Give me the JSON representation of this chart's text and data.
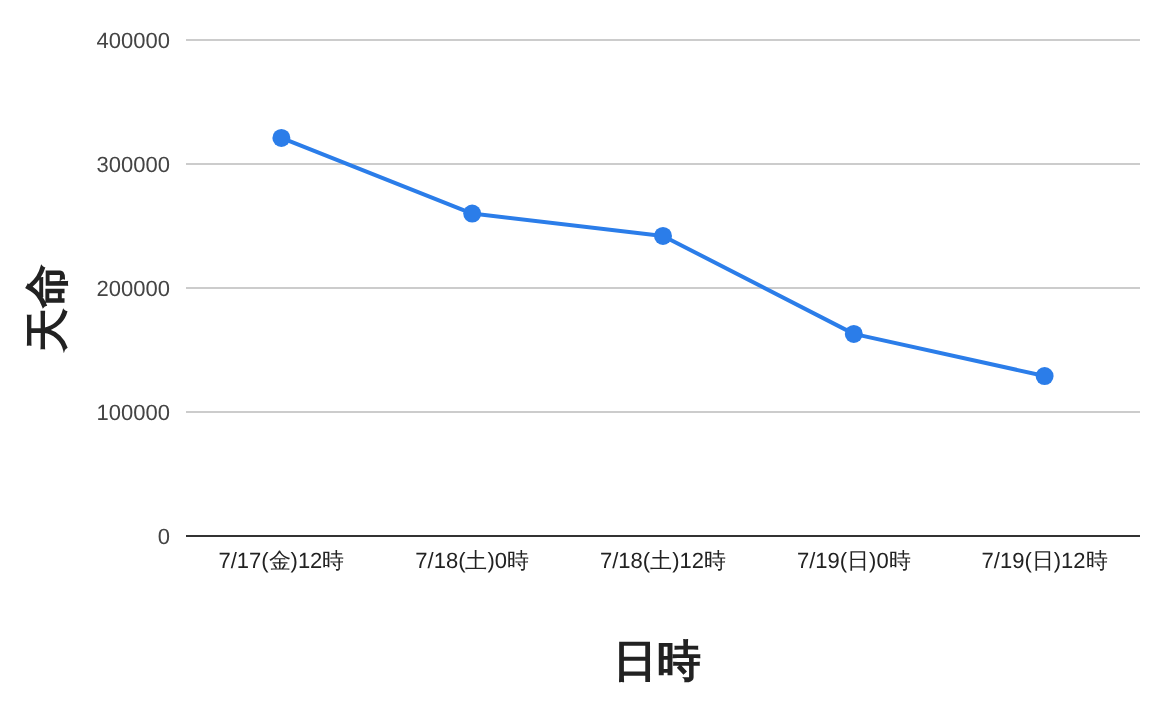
{
  "chart_data": {
    "type": "line",
    "xlabel": "日時",
    "ylabel": "天命",
    "categories": [
      "7/17(金)12時",
      "7/18(土)0時",
      "7/18(土)12時",
      "7/19(日)0時",
      "7/19(日)12時"
    ],
    "series": [
      {
        "color": "#2b7de9",
        "values": [
          321000,
          260000,
          242000,
          163000,
          129000
        ]
      }
    ],
    "ylim": [
      0,
      400000
    ],
    "yticks": [
      0,
      100000,
      200000,
      300000,
      400000
    ],
    "grid": "y",
    "marker": "circle",
    "line_style": "solid"
  }
}
